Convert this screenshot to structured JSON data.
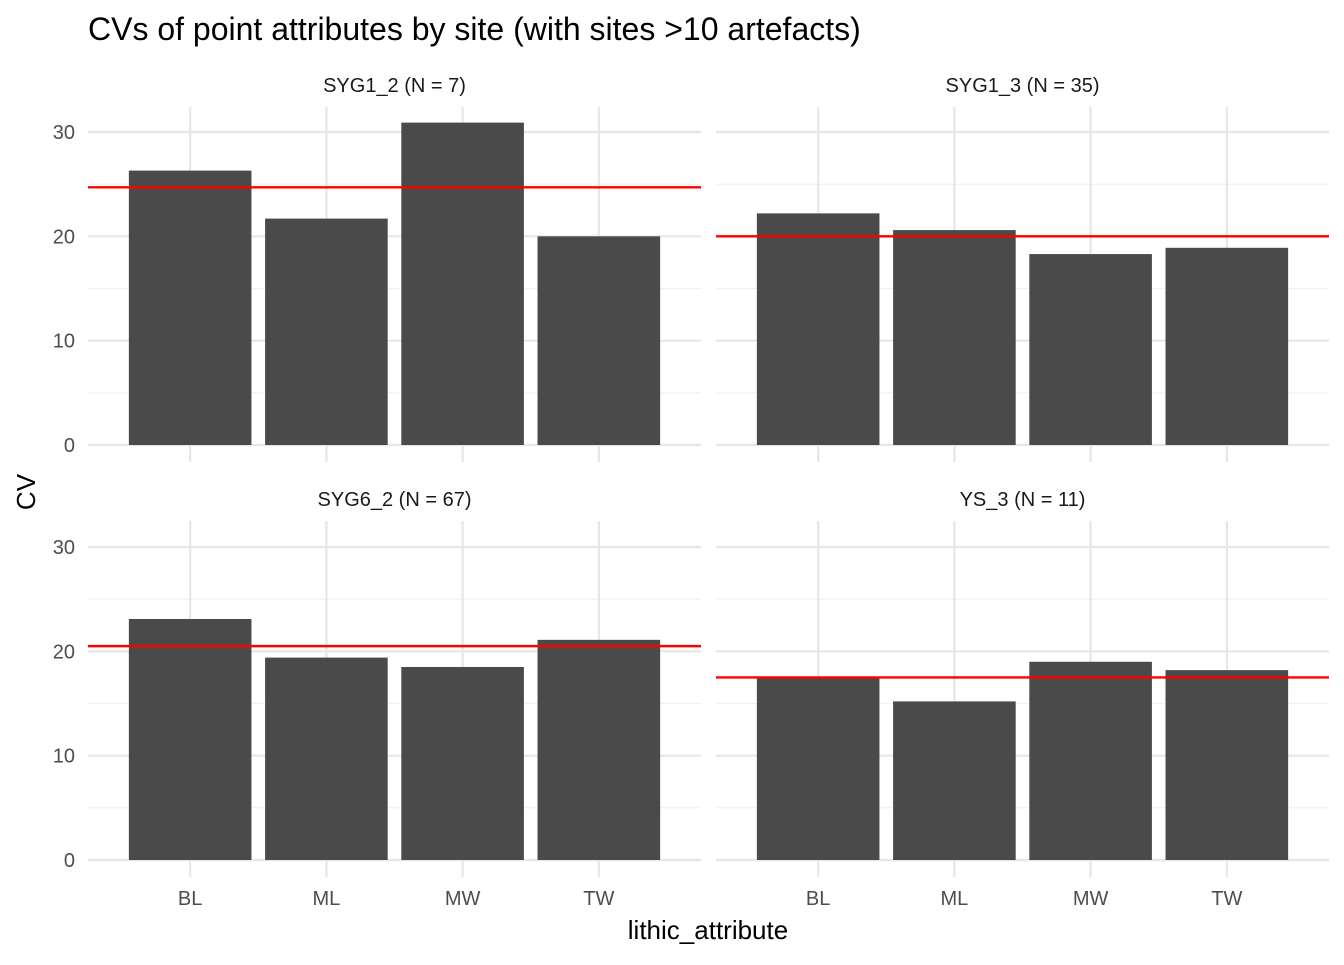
{
  "chart_data": {
    "type": "bar",
    "title": "CVs of point attributes by site (with sites >10 artefacts)",
    "xlabel": "lithic_attribute",
    "ylabel": "CV",
    "categories": [
      "BL",
      "ML",
      "MW",
      "TW"
    ],
    "ylim": [
      0,
      32
    ],
    "y_ticks": [
      "0",
      "10",
      "20",
      "30"
    ],
    "grid": true,
    "bar_color": "#4a4a4a",
    "reference_line_color": "#ff0000",
    "panels": [
      {
        "label": "SYG1_2 (N = 7)",
        "values": [
          26.3,
          21.7,
          30.9,
          20.0
        ],
        "reference_line": 24.7
      },
      {
        "label": "SYG1_3 (N = 35)",
        "values": [
          22.2,
          20.6,
          18.3,
          18.9
        ],
        "reference_line": 20.0
      },
      {
        "label": "SYG6_2 (N = 67)",
        "values": [
          23.1,
          19.4,
          18.5,
          21.1
        ],
        "reference_line": 20.5
      },
      {
        "label": "YS_3 (N = 11)",
        "values": [
          17.5,
          15.2,
          19.0,
          18.2
        ],
        "reference_line": 17.5
      }
    ]
  }
}
